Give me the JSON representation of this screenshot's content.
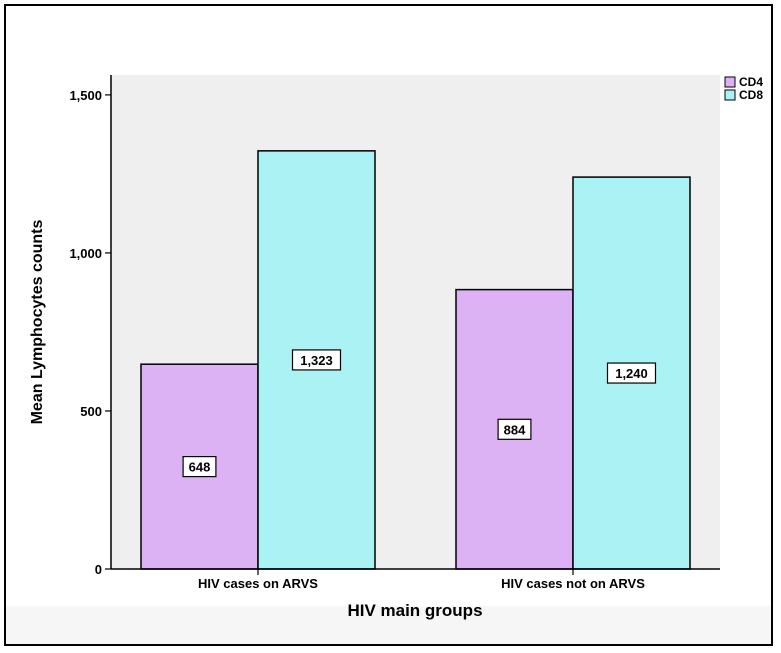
{
  "chart_data": {
    "type": "bar",
    "categories": [
      "HIV cases on ARVS",
      "HIV cases not on ARVS"
    ],
    "series": [
      {
        "name": "CD4",
        "values": [
          648,
          884
        ],
        "labels": [
          "648",
          "884"
        ],
        "color": "#dcb2f5"
      },
      {
        "name": "CD8",
        "values": [
          1323,
          1240
        ],
        "labels": [
          "1,323",
          "1,240"
        ],
        "color": "#aaf2f3"
      }
    ],
    "xlabel": "HIV main groups",
    "ylabel": "Mean Lymphocytes counts",
    "ylim": [
      0,
      1500
    ],
    "yticks": [
      0,
      500,
      1000,
      1500
    ],
    "ytick_labels": [
      "0",
      "500",
      "1,000",
      "1,500"
    ],
    "grid": false,
    "legend_position": "top-right",
    "plot_background": "#efefef"
  }
}
